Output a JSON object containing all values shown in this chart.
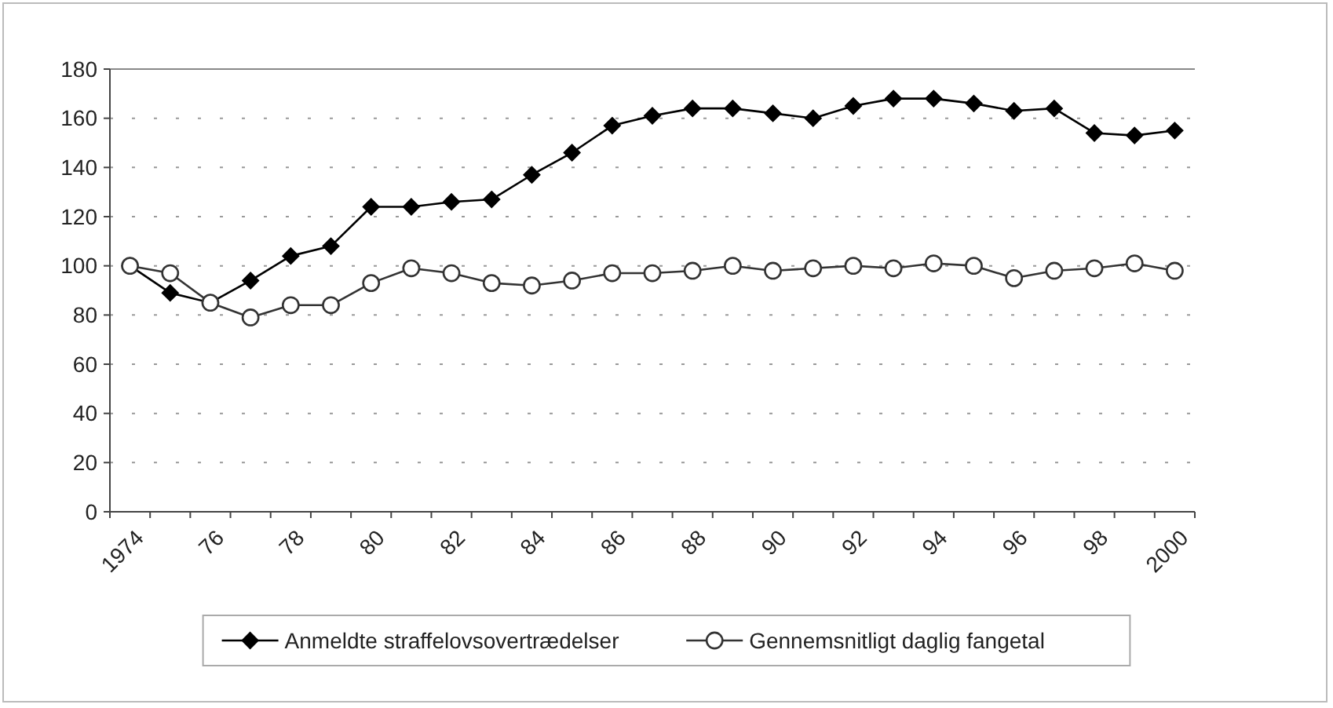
{
  "chart_data": {
    "type": "line",
    "categories": [
      "1974",
      null,
      "76",
      null,
      "78",
      null,
      "80",
      null,
      "82",
      null,
      "84",
      null,
      "86",
      null,
      "88",
      null,
      "90",
      null,
      "92",
      null,
      "94",
      null,
      "96",
      null,
      "98",
      null,
      "2000"
    ],
    "series": [
      {
        "name": "Anmeldte straffelovsovertrædelser",
        "color": "#000000",
        "marker": "diamond",
        "values": [
          100,
          89,
          85,
          94,
          104,
          108,
          124,
          124,
          126,
          127,
          137,
          146,
          157,
          161,
          164,
          164,
          162,
          160,
          165,
          168,
          168,
          166,
          163,
          164,
          154,
          153,
          155
        ]
      },
      {
        "name": "Gennemsnitligt daglig  fangetal",
        "color": "#333333",
        "marker": "circle",
        "values": [
          100,
          97,
          85,
          79,
          84,
          84,
          93,
          99,
          97,
          93,
          92,
          94,
          97,
          97,
          98,
          100,
          98,
          99,
          100,
          99,
          101,
          100,
          95,
          98,
          99,
          101,
          98
        ]
      }
    ],
    "ylim": [
      0,
      180
    ],
    "yticks": [
      0,
      20,
      40,
      60,
      80,
      100,
      120,
      140,
      160,
      180
    ],
    "grid": "y",
    "legend": "bottom",
    "line_style": "solid"
  }
}
